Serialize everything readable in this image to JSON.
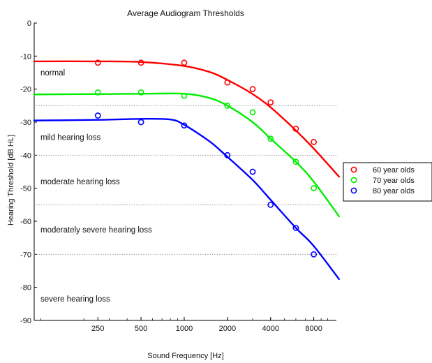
{
  "chart_data": {
    "type": "line",
    "title": "Average Audiogram Thresholds",
    "xlabel": "Sound Frequency [Hz]",
    "ylabel": "Hearing Threshold [dB HL]",
    "x_scale": "log",
    "x_ticks": [
      250,
      500,
      1000,
      2000,
      4000,
      8000
    ],
    "x_tick_labels": [
      "250",
      "500",
      "1000",
      "2000",
      "4000",
      "8000"
    ],
    "ylim": [
      -90,
      0
    ],
    "y_ticks": [
      0,
      -10,
      -20,
      -30,
      -40,
      -50,
      -60,
      -70,
      -80,
      -90
    ],
    "y_tick_labels": [
      "0",
      "-10",
      "-20",
      "-30",
      "-40",
      "-50",
      "-60",
      "-70",
      "-80",
      "-90"
    ],
    "grid": false,
    "band_thresholds": [
      -25,
      -40,
      -55,
      -70
    ],
    "band_labels": [
      {
        "label": "normal",
        "y": -15
      },
      {
        "label": "mild hearing loss",
        "y": -34.5
      },
      {
        "label": "moderate hearing loss",
        "y": -48
      },
      {
        "label": "moderately severe hearing loss",
        "y": -62.5
      },
      {
        "label": "severe hearing loss",
        "y": -83.5
      }
    ],
    "legend_position": "outside-right",
    "series": [
      {
        "name": "60 year olds",
        "color": "#ff0000",
        "points": [
          [
            250,
            -12
          ],
          [
            500,
            -12
          ],
          [
            1000,
            -12
          ],
          [
            2000,
            -18
          ],
          [
            3000,
            -20
          ],
          [
            4000,
            -24
          ],
          [
            6000,
            -32
          ],
          [
            8000,
            -36
          ]
        ],
        "fit": [
          [
            90,
            -11.6
          ],
          [
            250,
            -11.6
          ],
          [
            500,
            -11.8
          ],
          [
            1000,
            -13
          ],
          [
            1500,
            -14.8
          ],
          [
            2000,
            -17.2
          ],
          [
            3000,
            -21.5
          ],
          [
            4000,
            -25.5
          ],
          [
            6000,
            -32.5
          ],
          [
            8000,
            -38
          ],
          [
            12000,
            -46.5
          ]
        ]
      },
      {
        "name": "70 year olds",
        "color": "#00ee00",
        "points": [
          [
            250,
            -21
          ],
          [
            500,
            -21
          ],
          [
            1000,
            -22
          ],
          [
            2000,
            -25
          ],
          [
            3000,
            -27
          ],
          [
            4000,
            -35
          ],
          [
            6000,
            -42
          ],
          [
            8000,
            -50
          ]
        ],
        "fit": [
          [
            90,
            -21.6
          ],
          [
            250,
            -21.5
          ],
          [
            500,
            -21.4
          ],
          [
            1000,
            -21.4
          ],
          [
            1500,
            -22.7
          ],
          [
            2000,
            -25
          ],
          [
            3000,
            -30
          ],
          [
            4000,
            -35
          ],
          [
            6000,
            -42
          ],
          [
            8000,
            -48
          ],
          [
            12000,
            -58.5
          ]
        ]
      },
      {
        "name": "80 year olds",
        "color": "#0000ff",
        "points": [
          [
            250,
            -28
          ],
          [
            500,
            -30
          ],
          [
            1000,
            -31
          ],
          [
            2000,
            -40
          ],
          [
            3000,
            -45
          ],
          [
            4000,
            -55
          ],
          [
            6000,
            -62
          ],
          [
            8000,
            -70
          ]
        ],
        "fit": [
          [
            90,
            -29.5
          ],
          [
            250,
            -29.3
          ],
          [
            500,
            -29
          ],
          [
            800,
            -29.2
          ],
          [
            1000,
            -30.8
          ],
          [
            1500,
            -35.8
          ],
          [
            2000,
            -40.5
          ],
          [
            3000,
            -47.5
          ],
          [
            4000,
            -53.5
          ],
          [
            6000,
            -62
          ],
          [
            8000,
            -67.5
          ],
          [
            12000,
            -77.5
          ]
        ]
      }
    ]
  }
}
